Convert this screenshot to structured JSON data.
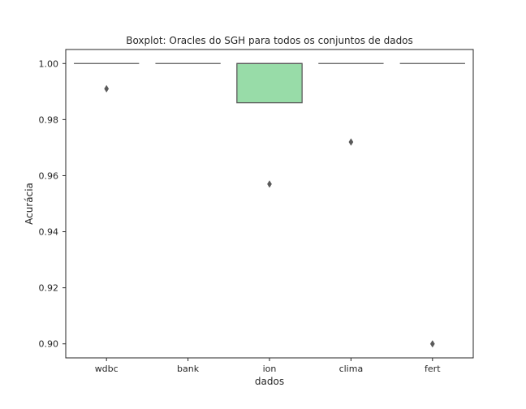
{
  "chart_data": {
    "type": "boxplot",
    "title": "Boxplot: Oracles do SGH para todos os conjuntos de dados",
    "xlabel": "dados",
    "ylabel": "Acurácia",
    "ylim": [
      0.895,
      1.005
    ],
    "yticks": [
      "0.90",
      "0.92",
      "0.94",
      "0.96",
      "0.98",
      "1.00"
    ],
    "grid": false,
    "categories": [
      "wdbc",
      "bank",
      "ion",
      "clima",
      "fert"
    ],
    "boxes": [
      {
        "category": "wdbc",
        "q1": 1.0,
        "median": 1.0,
        "q3": 1.0,
        "whisker_low": 1.0,
        "whisker_high": 1.0,
        "outliers": [
          0.991
        ],
        "color": "#8fb3d9"
      },
      {
        "category": "bank",
        "q1": 1.0,
        "median": 1.0,
        "q3": 1.0,
        "whisker_low": 1.0,
        "whisker_high": 1.0,
        "outliers": [],
        "color": "#f4b183"
      },
      {
        "category": "ion",
        "q1": 0.986,
        "median": 1.0,
        "q3": 1.0,
        "whisker_low": 0.986,
        "whisker_high": 1.0,
        "outliers": [
          0.957
        ],
        "color": "#98dca8"
      },
      {
        "category": "clima",
        "q1": 1.0,
        "median": 1.0,
        "q3": 1.0,
        "whisker_low": 1.0,
        "whisker_high": 1.0,
        "outliers": [
          0.972
        ],
        "color": "#f29b9b"
      },
      {
        "category": "fert",
        "q1": 1.0,
        "median": 1.0,
        "q3": 1.0,
        "whisker_low": 1.0,
        "whisker_high": 1.0,
        "outliers": [
          0.9
        ],
        "color": "#c3b0e0"
      }
    ],
    "line_color": "#5a5a5a"
  }
}
